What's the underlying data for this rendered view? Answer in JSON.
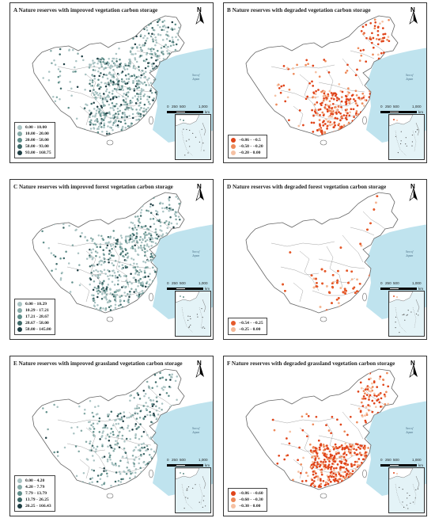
{
  "colors": {
    "land": "#ffffff",
    "sea": "#bfe3ee",
    "border": "#9a9a9a",
    "improved_dot": "#6f9d98"
  },
  "north_label": "N",
  "scale_labels": [
    "0",
    "250",
    "500",
    "1,000"
  ],
  "scale_unit": "km",
  "panels": [
    {
      "id": "A",
      "title": "A   Nature reserves with improved vegetation carbon storage",
      "kind": "improved",
      "density": 820,
      "legend": [
        {
          "label": "0.00 - 10.00",
          "color": "#a9c3c3"
        },
        {
          "label": "10.00 - 20.00",
          "color": "#86aaa7"
        },
        {
          "label": "20.00 - 58.00",
          "color": "#5f8e8a"
        },
        {
          "label": "58.00 - 93.00",
          "color": "#3c6867"
        },
        {
          "label": "93.00 - 168.75",
          "color": "#1e3e44"
        }
      ]
    },
    {
      "id": "B",
      "title": "B   Nature reserves with degraded vegetation carbon storage",
      "kind": "degraded",
      "density": 380,
      "legend": [
        {
          "label": "−0.86 - −0.5",
          "color": "#e0441a"
        },
        {
          "label": "−0.50 - −0.20",
          "color": "#ee8a5a"
        },
        {
          "label": "−0.20 - 0.00",
          "color": "#f6c1a3"
        }
      ]
    },
    {
      "id": "C",
      "title": "C   Nature reserves with improved forest vegetation carbon storage",
      "kind": "improved",
      "density": 700,
      "legend": [
        {
          "label": "0.00 - 10.29",
          "color": "#a9c3c3"
        },
        {
          "label": "10.29 - 17.21",
          "color": "#86aaa7"
        },
        {
          "label": "17.21 - 28.67",
          "color": "#5f8e8a"
        },
        {
          "label": "28.67 - 58.00",
          "color": "#3c6867"
        },
        {
          "label": "58.00 - 145.00",
          "color": "#1e3e44"
        }
      ]
    },
    {
      "id": "D",
      "title": "D   Nature reserves with degraded forest vegetation carbon storage",
      "kind": "degraded",
      "density": 240,
      "legend": [
        {
          "label": "−0.54 - −0.25",
          "color": "#e55a2b"
        },
        {
          "label": "−0.25 - 0.00",
          "color": "#f4b795"
        }
      ]
    },
    {
      "id": "E",
      "title": "E   Nature reserves with improved grassland vegetation carbon storage",
      "kind": "improved",
      "density": 420,
      "legend": [
        {
          "label": "0.00 - 4.20",
          "color": "#a9c3c3"
        },
        {
          "label": "4.20 - 7.79",
          "color": "#86aaa7"
        },
        {
          "label": "7.79 - 13.79",
          "color": "#5f8e8a"
        },
        {
          "label": "13.79 - 26.25",
          "color": "#3c6867"
        },
        {
          "label": "26.25 - 166.43",
          "color": "#1e3e44"
        }
      ]
    },
    {
      "id": "F",
      "title": "F   Nature reserves with degraded grassland vegetation carbon storage",
      "kind": "degraded",
      "density": 520,
      "legend": [
        {
          "label": "−0.86 - −0.60",
          "color": "#e0441a"
        },
        {
          "label": "−0.60 - −0.30",
          "color": "#ee8a5a"
        },
        {
          "label": "−0.30 - 0.00",
          "color": "#f6c1a3"
        }
      ]
    }
  ]
}
